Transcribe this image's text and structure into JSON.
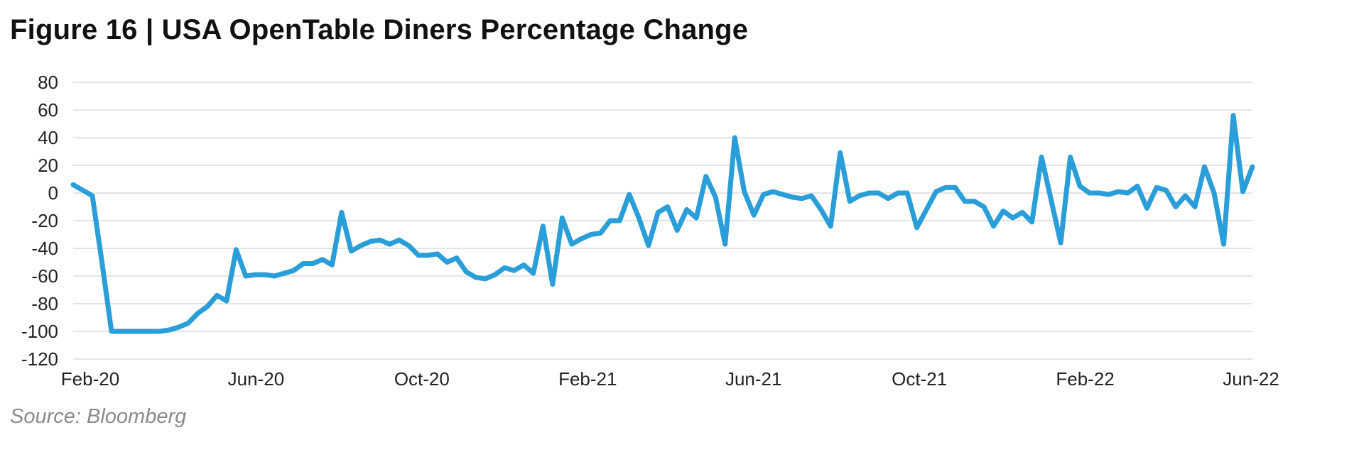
{
  "header": {
    "title": "Figure 16  |  USA OpenTable Diners Percentage Change"
  },
  "source": "Source: Bloomberg",
  "colors": {
    "line": "#2a9ed8",
    "grid": "#dcdcdc",
    "text": "#222222",
    "source": "#8a8a8a"
  },
  "chart_data": {
    "type": "line",
    "title": "USA OpenTable Diners Percentage Change",
    "xlabel": "",
    "ylabel": "",
    "ylim": [
      -120,
      80
    ],
    "yticks": [
      80,
      60,
      40,
      20,
      0,
      -20,
      -40,
      -60,
      -80,
      -100,
      -120
    ],
    "xtick_labels": [
      "Feb-20",
      "Jun-20",
      "Oct-20",
      "Feb-21",
      "Jun-21",
      "Oct-21",
      "Feb-22",
      "Jun-22"
    ],
    "grid": true,
    "legend": "none",
    "series": [
      {
        "values": [
          6,
          2,
          -2,
          -50,
          -100,
          -100,
          -100,
          -100,
          -100,
          -100,
          -99,
          -97,
          -94,
          -87,
          -82,
          -74,
          -78,
          -41,
          -60,
          -59,
          -59,
          -60,
          -58,
          -56,
          -51,
          -51,
          -48,
          -52,
          -14,
          -42,
          -38,
          -35,
          -34,
          -37,
          -34,
          -38,
          -45,
          -45,
          -44,
          -50,
          -47,
          -57,
          -61,
          -62,
          -59,
          -54,
          -56,
          -52,
          -58,
          -24,
          -66,
          -18,
          -37,
          -33,
          -30,
          -29,
          -20,
          -20,
          -1,
          -18,
          -38,
          -14,
          -10,
          -27,
          -12,
          -18,
          12,
          -3,
          -37,
          40,
          1,
          -16,
          -1,
          1,
          -1,
          -3,
          -4,
          -2,
          -12,
          -24,
          29,
          -6,
          -2,
          0,
          0,
          -4,
          0,
          0,
          -25,
          -12,
          1,
          4,
          4,
          -6,
          -6,
          -10,
          -24,
          -13,
          -18,
          -14,
          -21,
          26,
          -5,
          -36,
          26,
          5,
          0,
          0,
          -1,
          1,
          0,
          5,
          -11,
          4,
          2,
          -10,
          -2,
          -10,
          19,
          0,
          -37,
          56,
          1,
          19
        ]
      }
    ]
  }
}
